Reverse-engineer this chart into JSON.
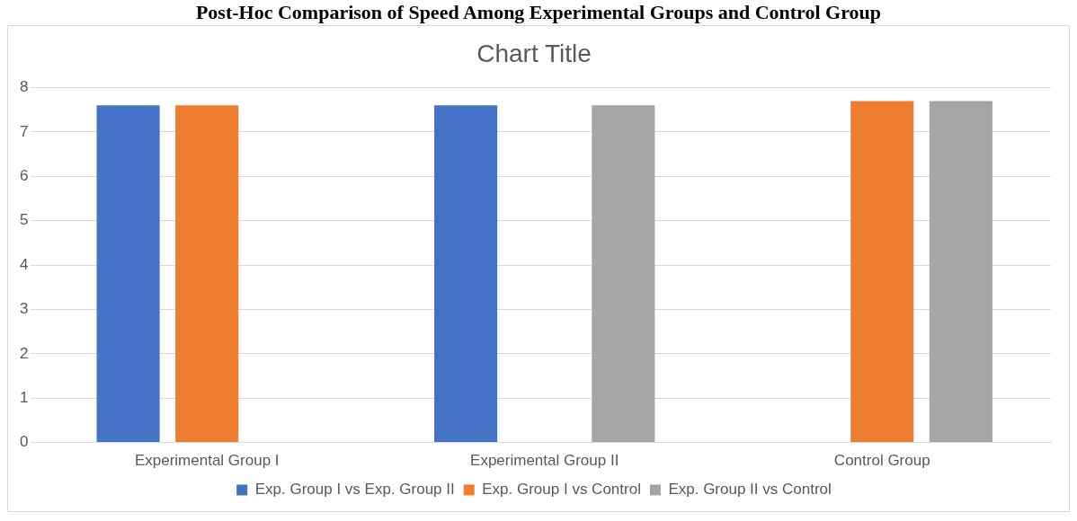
{
  "chart_data": {
    "type": "bar",
    "title": "Post-Hoc Comparison of Speed Among Experimental Groups and Control Group",
    "subtitle": "Chart Title",
    "categories": [
      "Experimental Group I",
      "Experimental Group II",
      "Control Group"
    ],
    "series": [
      {
        "name": "Exp. Group I vs Exp. Group II",
        "color": "#4472c4",
        "values": [
          7.6,
          7.6,
          0
        ]
      },
      {
        "name": "Exp. Group I vs Control",
        "color": "#ed7d31",
        "values": [
          7.6,
          0,
          7.7
        ]
      },
      {
        "name": "Exp. Group II vs Control",
        "color": "#a5a5a5",
        "values": [
          0,
          7.6,
          7.7
        ]
      }
    ],
    "ylim": [
      0,
      8
    ],
    "yticks": [
      0,
      1,
      2,
      3,
      4,
      5,
      6,
      7,
      8
    ],
    "grid": "y",
    "legend": "bottom"
  }
}
